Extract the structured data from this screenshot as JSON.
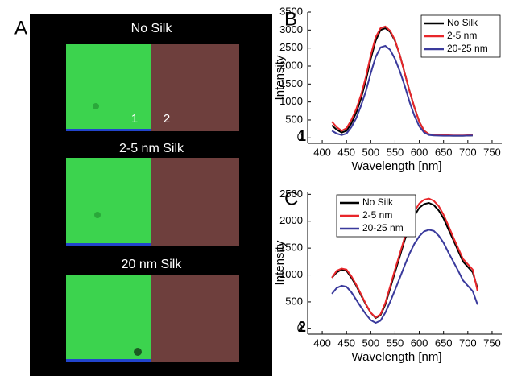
{
  "panel_a": {
    "label": "A",
    "images": [
      {
        "title": "No Silk"
      },
      {
        "title": "2-5 nm Silk"
      },
      {
        "title": "20 nm Silk"
      }
    ],
    "region_labels": [
      "1",
      "2"
    ]
  },
  "chart_data": [
    {
      "type": "line",
      "panel_label": "B",
      "annotation": "1",
      "x_label": "Wavelength [nm]",
      "y_label": "Intensity",
      "legend": "upper right",
      "x": [
        420,
        430,
        440,
        450,
        460,
        470,
        480,
        490,
        500,
        510,
        520,
        530,
        540,
        550,
        560,
        570,
        580,
        590,
        600,
        610,
        620,
        630,
        650,
        670,
        690,
        710
      ],
      "xlim": [
        370,
        770
      ],
      "xticks": [
        400,
        450,
        500,
        550,
        600,
        650,
        700,
        750
      ],
      "ylim": [
        -150,
        3500
      ],
      "yticks": [
        0,
        500,
        1000,
        1500,
        2000,
        2500,
        3000,
        3500
      ],
      "series": [
        {
          "name": "No Silk",
          "color": "#000000",
          "values": [
            350,
            230,
            150,
            200,
            400,
            700,
            1100,
            1600,
            2200,
            2700,
            3000,
            3050,
            2950,
            2700,
            2300,
            1800,
            1300,
            850,
            450,
            200,
            100,
            80,
            70,
            60,
            60,
            70
          ]
        },
        {
          "name": "2-5 nm",
          "color": "#e8262a",
          "values": [
            450,
            300,
            200,
            270,
            500,
            800,
            1200,
            1700,
            2300,
            2800,
            3050,
            3100,
            2980,
            2720,
            2300,
            1800,
            1300,
            850,
            450,
            200,
            100,
            90,
            80,
            70,
            70,
            80
          ]
        },
        {
          "name": "20-25 nm",
          "color": "#3a3a9c",
          "values": [
            200,
            120,
            80,
            120,
            300,
            550,
            900,
            1300,
            1800,
            2250,
            2520,
            2560,
            2450,
            2200,
            1850,
            1450,
            1000,
            620,
            320,
            150,
            80,
            70,
            60,
            60,
            60,
            70
          ]
        }
      ]
    },
    {
      "type": "line",
      "panel_label": "C",
      "annotation": "2",
      "x_label": "Wavelength [nm]",
      "y_label": "Intensity",
      "legend": "upper left",
      "x": [
        420,
        430,
        440,
        450,
        460,
        470,
        480,
        490,
        500,
        510,
        520,
        530,
        540,
        550,
        560,
        570,
        580,
        590,
        600,
        610,
        620,
        630,
        640,
        650,
        660,
        670,
        680,
        690,
        700,
        710,
        720
      ],
      "xlim": [
        370,
        770
      ],
      "xticks": [
        400,
        450,
        500,
        550,
        600,
        650,
        700,
        750
      ],
      "ylim": [
        -100,
        2550
      ],
      "yticks": [
        0,
        500,
        1000,
        1500,
        2000,
        2500
      ],
      "series": [
        {
          "name": "No Silk",
          "color": "#000000",
          "values": [
            950,
            1050,
            1100,
            1080,
            950,
            800,
            620,
            450,
            300,
            200,
            250,
            450,
            750,
            1050,
            1350,
            1650,
            1900,
            2100,
            2250,
            2320,
            2340,
            2300,
            2200,
            2050,
            1850,
            1650,
            1450,
            1250,
            1150,
            1050,
            750
          ]
        },
        {
          "name": "2-5 nm",
          "color": "#e8262a",
          "values": [
            950,
            1080,
            1120,
            1100,
            980,
            820,
            640,
            460,
            300,
            210,
            270,
            480,
            790,
            1100,
            1400,
            1700,
            1970,
            2180,
            2330,
            2400,
            2420,
            2380,
            2280,
            2120,
            1920,
            1700,
            1500,
            1300,
            1200,
            1100,
            700
          ]
        },
        {
          "name": "20-25 nm",
          "color": "#3a3a9c",
          "values": [
            650,
            760,
            800,
            780,
            680,
            540,
            400,
            270,
            160,
            110,
            150,
            300,
            500,
            720,
            950,
            1180,
            1400,
            1580,
            1720,
            1810,
            1840,
            1820,
            1730,
            1600,
            1420,
            1250,
            1080,
            900,
            800,
            700,
            450
          ]
        }
      ]
    }
  ]
}
